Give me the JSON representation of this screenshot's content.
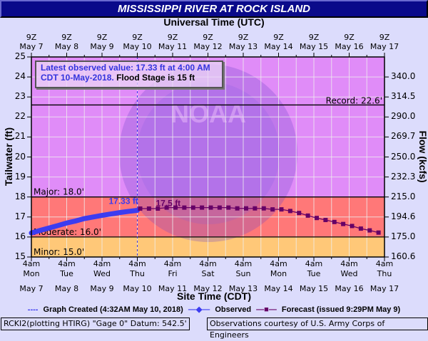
{
  "title": "MISSISSIPPI RIVER AT ROCK ISLAND",
  "top_axis_title": "Universal Time (UTC)",
  "bottom_axis_title": "Site Time (CDT)",
  "left_axis_title": "Tailwater (ft)",
  "right_axis_title": "Flow (kcfs)",
  "info_box": {
    "line1": "Latest observed value: 17.33 ft at 4:00 AM",
    "line2_blue": "CDT 10-May-2018.",
    "line2_black": "Flood Stage is 15 ft"
  },
  "thresholds": {
    "record": "Record: 22.6'",
    "major": "Major: 18.0'",
    "moderate": "Moderate: 16.0'",
    "minor": "Minor: 15.0'"
  },
  "annotations": {
    "observed_label": "17.33 ft",
    "forecast_label": "17.5 ft"
  },
  "legend": {
    "graph_created": "Graph Created (4:32AM May 10, 2018)",
    "observed": "Observed",
    "forecast": "Forecast (issued 9:29PM May 9)"
  },
  "footer": {
    "left": "RCKI2(plotting HTIRG) \"Gage 0\" Datum: 542.5'",
    "right": "Observations courtesy of U.S. Army Corps of Engineers"
  },
  "colors": {
    "title_bg": "#0a0a8a",
    "page_bg": "#dcdcfc",
    "above_major": "#e08cf8",
    "major_band": "#ff7878",
    "minor_band": "#ffc878",
    "observed": "#3c3cf0",
    "forecast": "#660066"
  },
  "chart_data": {
    "type": "line",
    "title": "MISSISSIPPI RIVER AT ROCK ISLAND",
    "xlabel": "Site Time (CDT)",
    "ylabel": "Tailwater (ft)",
    "y2label": "Flow (kcfs)",
    "ylim": [
      15,
      25
    ],
    "grid": true,
    "top_x_ticks": [
      {
        "z": "9Z",
        "date": "May 7"
      },
      {
        "z": "9Z",
        "date": "May 8"
      },
      {
        "z": "9Z",
        "date": "May 9"
      },
      {
        "z": "9Z",
        "date": "May 10"
      },
      {
        "z": "9Z",
        "date": "May 11"
      },
      {
        "z": "9Z",
        "date": "May 12"
      },
      {
        "z": "9Z",
        "date": "May 13"
      },
      {
        "z": "9Z",
        "date": "May 14"
      },
      {
        "z": "9Z",
        "date": "May 15"
      },
      {
        "z": "9Z",
        "date": "May 16"
      },
      {
        "z": "9Z",
        "date": "May 17"
      }
    ],
    "bottom_x_ticks": [
      {
        "time": "4am",
        "day": "Mon",
        "date": "May 7"
      },
      {
        "time": "4am",
        "day": "Tue",
        "date": "May 8"
      },
      {
        "time": "4am",
        "day": "Wed",
        "date": "May 9"
      },
      {
        "time": "4am",
        "day": "Thu",
        "date": "May 10"
      },
      {
        "time": "4am",
        "day": "Fri",
        "date": "May 11"
      },
      {
        "time": "4am",
        "day": "Sat",
        "date": "May 12"
      },
      {
        "time": "4am",
        "day": "Sun",
        "date": "May 13"
      },
      {
        "time": "4am",
        "day": "Mon",
        "date": "May 14"
      },
      {
        "time": "4am",
        "day": "Tue",
        "date": "May 15"
      },
      {
        "time": "4am",
        "day": "Wed",
        "date": "May 16"
      },
      {
        "time": "4am",
        "day": "Thu",
        "date": "May 17"
      }
    ],
    "y_ticks": [
      "15",
      "16",
      "17",
      "18",
      "19",
      "20",
      "21",
      "22",
      "23",
      "24",
      "25"
    ],
    "y2_ticks": [
      {
        "stage": 15,
        "label": "160.6"
      },
      {
        "stage": 16,
        "label": "175.0"
      },
      {
        "stage": 17,
        "label": "194.6"
      },
      {
        "stage": 18,
        "label": "215.0"
      },
      {
        "stage": 19,
        "label": "232.3"
      },
      {
        "stage": 20,
        "label": "250.0"
      },
      {
        "stage": 21,
        "label": "269.7"
      },
      {
        "stage": 22,
        "label": "290.0"
      },
      {
        "stage": 23,
        "label": "314.5"
      },
      {
        "stage": 24,
        "label": "340.0"
      }
    ],
    "flood_levels": {
      "record": 22.6,
      "major": 18.0,
      "moderate": 16.0,
      "minor": 15.0
    },
    "series": [
      {
        "name": "Observed",
        "x_days": [
          0.0,
          0.25,
          0.5,
          0.75,
          1.0,
          1.25,
          1.5,
          1.75,
          2.0,
          2.25,
          2.5,
          2.75,
          3.0
        ],
        "values": [
          16.2,
          16.33,
          16.45,
          16.57,
          16.7,
          16.8,
          16.92,
          17.0,
          17.08,
          17.15,
          17.22,
          17.28,
          17.33
        ]
      },
      {
        "name": "Forecast",
        "x_days": [
          3.0,
          3.25,
          3.5,
          3.75,
          4.0,
          4.25,
          4.5,
          4.75,
          5.0,
          5.25,
          5.5,
          5.75,
          6.0,
          6.25,
          6.5,
          6.75,
          7.0,
          7.25,
          7.5,
          7.75,
          8.0,
          8.25,
          8.5,
          8.75,
          9.0,
          9.25,
          9.5,
          9.75
        ],
        "values": [
          17.42,
          17.42,
          17.42,
          17.47,
          17.47,
          17.47,
          17.47,
          17.47,
          17.47,
          17.47,
          17.47,
          17.43,
          17.43,
          17.43,
          17.43,
          17.38,
          17.38,
          17.3,
          17.2,
          17.07,
          16.95,
          16.85,
          16.75,
          16.65,
          16.55,
          16.42,
          16.33,
          16.22
        ]
      }
    ],
    "graph_created_x_days": 3.0
  }
}
